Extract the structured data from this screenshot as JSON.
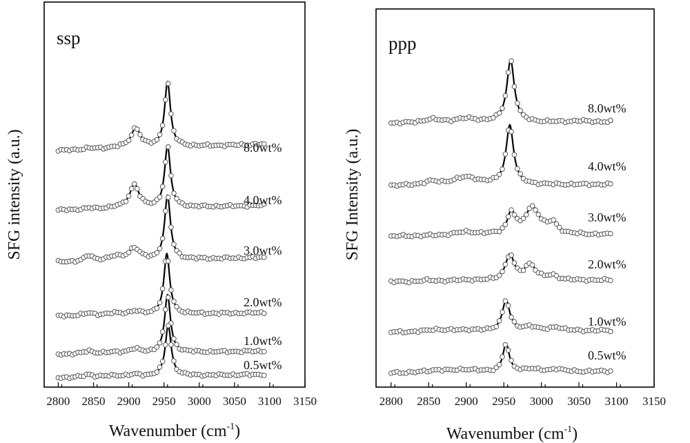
{
  "chart_data": [
    {
      "type": "line",
      "title": "ssp",
      "xlabel": "Wavenumber (cm",
      "xlabel_sup": "-1",
      "xlabel_close": ")",
      "ylabel": "SFG intensity (a.u.)",
      "xlim": [
        2780,
        3150
      ],
      "xticks": [
        2800,
        2850,
        2900,
        2950,
        3000,
        3050,
        3100,
        3150
      ],
      "grid": false,
      "x_range": [
        2800,
        3095
      ],
      "series": [
        {
          "name": "8.0wt%",
          "baseline": 0.22,
          "slope": 0.0004,
          "peaks": [
            [
              2843,
              0.025,
              8
            ],
            [
              2880,
              0.02,
              15
            ],
            [
              2910,
              0.36,
              8
            ],
            [
              2955,
              1.18,
              5
            ]
          ]
        },
        {
          "name": "4.0wt%",
          "baseline": 0.065,
          "slope": 0.0003,
          "peaks": [
            [
              2843,
              0.02,
              8
            ],
            [
              2880,
              0.02,
              15
            ],
            [
              2908,
              0.43,
              8
            ],
            [
              2955,
              1.12,
              5
            ]
          ]
        },
        {
          "name": "3.0wt%",
          "baseline": 0.035,
          "slope": 0.0003,
          "peaks": [
            [
              2843,
              0.1,
              7
            ],
            [
              2880,
              0.07,
              14
            ],
            [
              2908,
              0.22,
              9
            ],
            [
              2955,
              1.16,
              5
            ]
          ]
        },
        {
          "name": "2.0wt%",
          "baseline": 0.05,
          "slope": 0.0002,
          "peaks": [
            [
              2843,
              0.04,
              8
            ],
            [
              2880,
              0.03,
              15
            ],
            [
              2908,
              0.06,
              9
            ],
            [
              2954,
              1.1,
              5
            ]
          ]
        },
        {
          "name": "1.0wt%",
          "baseline": 0.03,
          "slope": 0.0002,
          "peaks": [
            [
              2843,
              0.05,
              8
            ],
            [
              2880,
              0.02,
              15
            ],
            [
              2908,
              0.07,
              9
            ],
            [
              2955,
              1.05,
              5
            ]
          ]
        },
        {
          "name": "0.5wt%",
          "baseline": 0.02,
          "slope": 0.0002,
          "peaks": [
            [
              2843,
              0.05,
              7
            ],
            [
              2880,
              0.02,
              15
            ],
            [
              2908,
              0.03,
              9
            ],
            [
              2956,
              0.92,
              5
            ]
          ]
        }
      ]
    },
    {
      "type": "line",
      "title": "ppp",
      "xlabel": "Wavenumber (cm",
      "xlabel_sup": "-1",
      "xlabel_close": ")",
      "ylabel": "SFG Intensity (a.u.)",
      "xlim": [
        2780,
        3150
      ],
      "xticks": [
        2800,
        2850,
        2900,
        2950,
        3000,
        3050,
        3100,
        3150
      ],
      "grid": false,
      "x_range": [
        2800,
        3095
      ],
      "series": [
        {
          "name": "8.0wt%",
          "baseline": 0.05,
          "slope": 0.0001,
          "peaks": [
            [
              2853,
              0.06,
              14
            ],
            [
              2900,
              0.07,
              20
            ],
            [
              2959,
              1.1,
              6
            ],
            [
              3050,
              0.02,
              10
            ]
          ]
        },
        {
          "name": "4.0wt%",
          "baseline": 0.04,
          "slope": 0.0001,
          "peaks": [
            [
              2853,
              0.06,
              14
            ],
            [
              2900,
              0.14,
              22
            ],
            [
              2958,
              1.05,
              6
            ]
          ]
        },
        {
          "name": "3.0wt%",
          "baseline": 0.03,
          "slope": 0.0001,
          "peaks": [
            [
              2900,
              0.06,
              20
            ],
            [
              2960,
              0.38,
              6
            ],
            [
              2988,
              0.48,
              12
            ],
            [
              3015,
              0.18,
              8
            ]
          ]
        },
        {
          "name": "2.0wt%",
          "baseline": 0.03,
          "slope": 0.0001,
          "peaks": [
            [
              2850,
              0.02,
              10
            ],
            [
              2900,
              0.02,
              20
            ],
            [
              2958,
              0.45,
              7
            ],
            [
              2985,
              0.28,
              9
            ],
            [
              3015,
              0.08,
              9
            ]
          ]
        },
        {
          "name": "1.0wt%",
          "baseline": 0.03,
          "slope": 0.0001,
          "peaks": [
            [
              2860,
              0.04,
              14
            ],
            [
              2900,
              0.03,
              20
            ],
            [
              2953,
              0.55,
              6
            ],
            [
              2985,
              0.08,
              10
            ],
            [
              3020,
              0.07,
              9
            ]
          ]
        },
        {
          "name": "0.5wt%",
          "baseline": 0.03,
          "slope": 0.0001,
          "peaks": [
            [
              2860,
              0.04,
              14
            ],
            [
              2898,
              0.05,
              20
            ],
            [
              2953,
              0.5,
              5
            ],
            [
              2985,
              0.05,
              12
            ],
            [
              3020,
              0.05,
              9
            ]
          ]
        }
      ]
    }
  ]
}
